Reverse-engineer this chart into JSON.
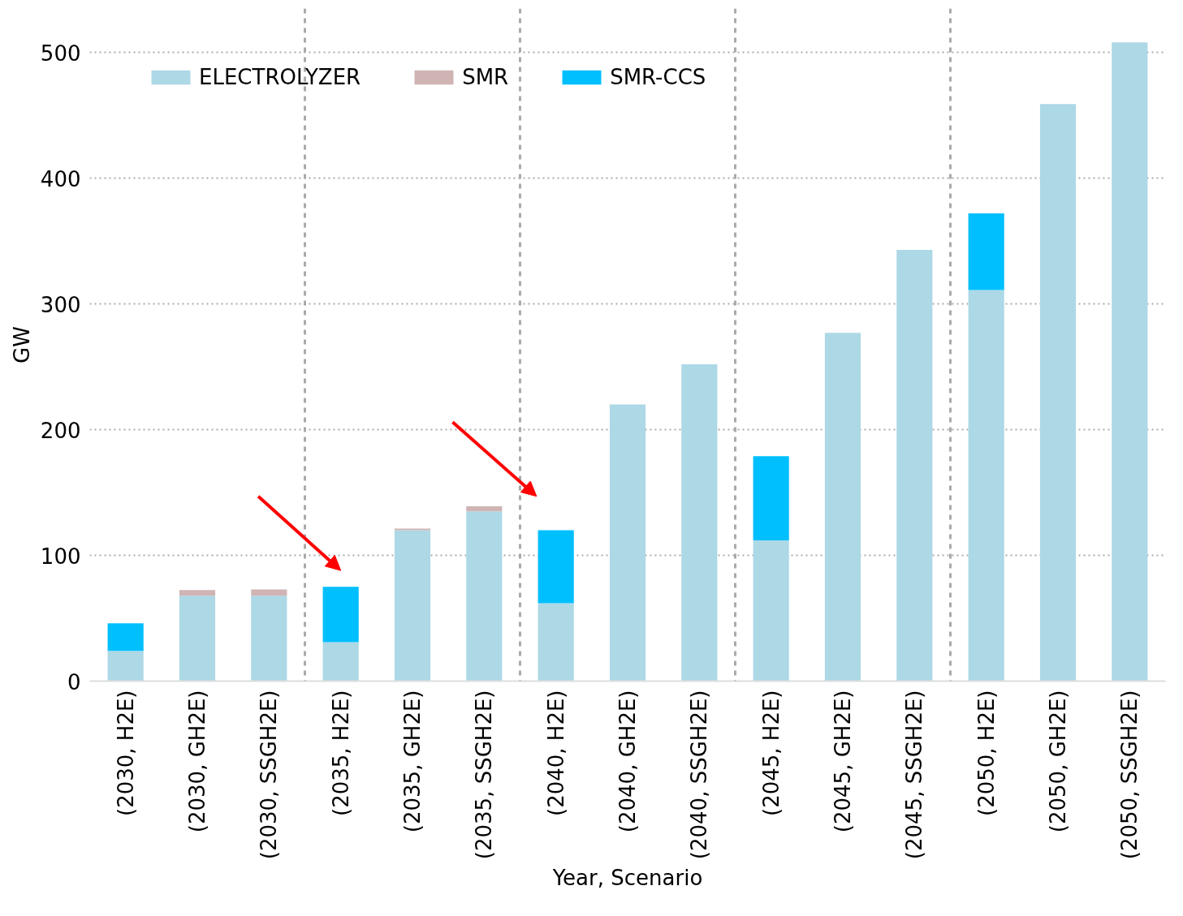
{
  "chart_data": {
    "type": "bar",
    "stacked": true,
    "xlabel": "Year, Scenario",
    "ylabel": "GW",
    "categories": [
      "(2030, H2E)",
      "(2030, GH2E)",
      "(2030, SSGH2E)",
      "(2035, H2E)",
      "(2035, GH2E)",
      "(2035, SSGH2E)",
      "(2040, H2E)",
      "(2040, GH2E)",
      "(2040, SSGH2E)",
      "(2045, H2E)",
      "(2045, GH2E)",
      "(2045, SSGH2E)",
      "(2050, H2E)",
      "(2050, GH2E)",
      "(2050, SSGH2E)"
    ],
    "series": [
      {
        "name": "ELECTROLYZER",
        "color": "#add8e6",
        "values": [
          24,
          68,
          68,
          31,
          120,
          135,
          62,
          220,
          252,
          112,
          277,
          343,
          311,
          459,
          508
        ]
      },
      {
        "name": "SMR",
        "color": "#d0b4b4",
        "values": [
          null,
          4.5,
          5,
          null,
          1.3,
          4,
          null,
          null,
          null,
          null,
          null,
          null,
          null,
          null,
          null
        ]
      },
      {
        "name": "SMR-CCS",
        "color": "#00bfff",
        "values": [
          22,
          null,
          null,
          44,
          null,
          null,
          58,
          null,
          null,
          67,
          null,
          null,
          61,
          null,
          null
        ]
      }
    ],
    "ylim": [
      0,
      535
    ],
    "yticks": [
      0,
      100,
      200,
      300,
      400,
      500
    ],
    "grid": "y",
    "legend": "top left"
  }
}
